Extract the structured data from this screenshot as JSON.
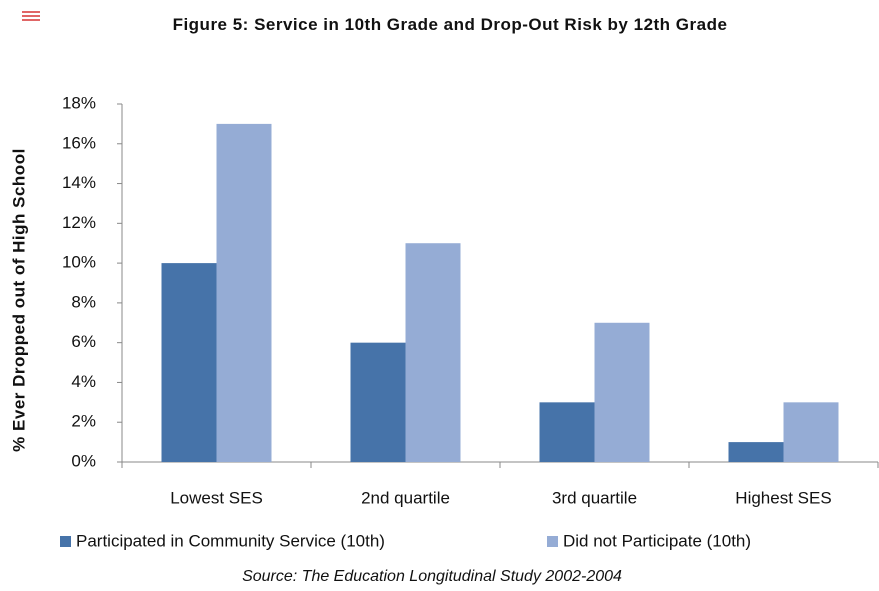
{
  "chart_data": {
    "type": "bar",
    "title": "Figure 5: Service in 10th Grade and Drop-Out Risk by 12th Grade",
    "y_label": "% Ever Dropped out of High School",
    "source": "Source:  The Education Longitudinal Study 2002-2004",
    "categories": [
      "Lowest SES",
      "2nd quartile",
      "3rd quartile",
      "Highest SES"
    ],
    "series": [
      {
        "name": "Participated in Community Service (10th)",
        "color": "#4673a9",
        "values": [
          10,
          6,
          3,
          1
        ]
      },
      {
        "name": "Did not Participate (10th)",
        "color": "#95acd5",
        "values": [
          17,
          11,
          7,
          3
        ]
      }
    ],
    "ylim": [
      0,
      18
    ],
    "yticks": [
      {
        "value": 0,
        "label": "0%"
      },
      {
        "value": 2,
        "label": "2%"
      },
      {
        "value": 4,
        "label": "4%"
      },
      {
        "value": 6,
        "label": "6%"
      },
      {
        "value": 8,
        "label": "8%"
      },
      {
        "value": 10,
        "label": "10%"
      },
      {
        "value": 12,
        "label": "12%"
      },
      {
        "value": 14,
        "label": "14%"
      },
      {
        "value": 16,
        "label": "16%"
      },
      {
        "value": 18,
        "label": "18%"
      }
    ],
    "legend": "bottom"
  }
}
